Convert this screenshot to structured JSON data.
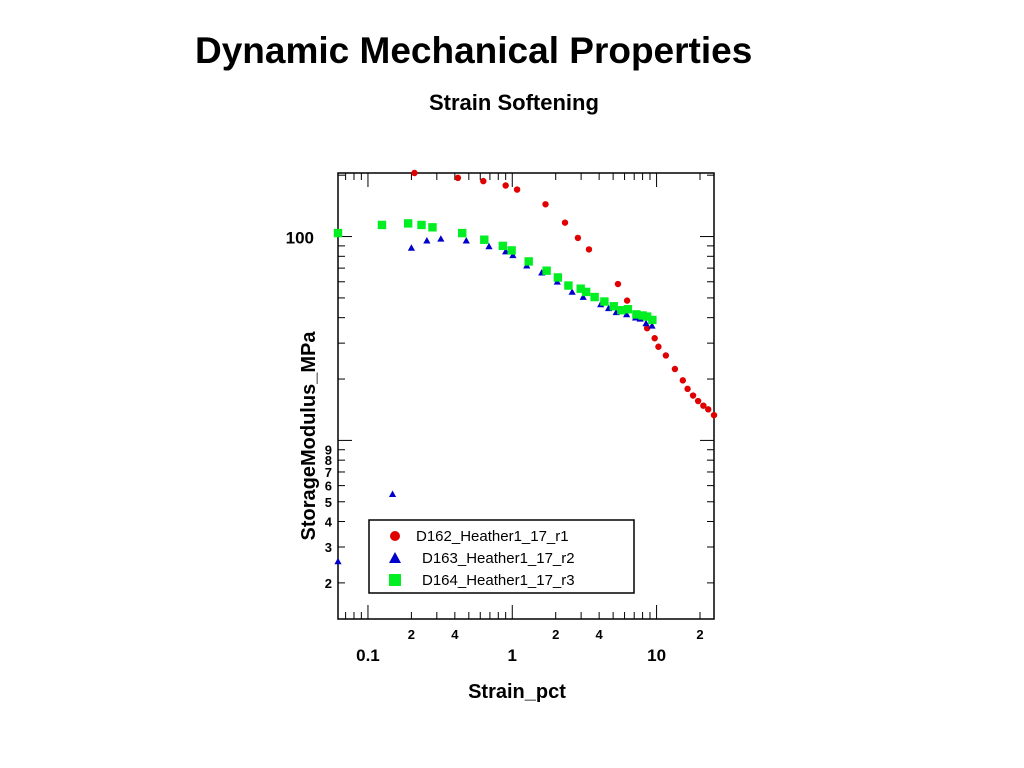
{
  "page": {
    "title": "Dynamic Mechanical Properties",
    "subtitle": "Strain Softening"
  },
  "chart_data": {
    "type": "scatter",
    "title": "Strain Softening",
    "xlabel": "Strain_pct",
    "ylabel": "StorageModulus_MPa",
    "xscale": "log",
    "yscale": "log",
    "xlim": [
      0.062,
      25
    ],
    "ylim": [
      1.33,
      205
    ],
    "x_major_ticks": [
      {
        "value": 0.1,
        "label": "0.1"
      },
      {
        "value": 1,
        "label": "1"
      },
      {
        "value": 10,
        "label": "10"
      }
    ],
    "x_minor_labels": [
      {
        "value": 0.2,
        "label": "2"
      },
      {
        "value": 0.4,
        "label": "4"
      },
      {
        "value": 2,
        "label": "2"
      },
      {
        "value": 4,
        "label": "4"
      },
      {
        "value": 20,
        "label": "2"
      }
    ],
    "y_major_ticks": [
      {
        "value": 100,
        "label": "100"
      }
    ],
    "y_minor_labels": [
      {
        "value": 2,
        "label": "2"
      },
      {
        "value": 3,
        "label": "3"
      },
      {
        "value": 4,
        "label": "4"
      },
      {
        "value": 5,
        "label": "5"
      },
      {
        "value": 6,
        "label": "6"
      },
      {
        "value": 7,
        "label": "7"
      },
      {
        "value": 8,
        "label": "8"
      },
      {
        "value": 9,
        "label": "9"
      }
    ],
    "legend_position": "bottom-center",
    "series": [
      {
        "name": "D162_Heather1_17_r1",
        "color": "#e00000",
        "marker": "circle",
        "points": [
          [
            0.21,
            205
          ],
          [
            0.42,
            194
          ],
          [
            0.63,
            187
          ],
          [
            0.9,
            178
          ],
          [
            1.08,
            170
          ],
          [
            1.7,
            144
          ],
          [
            2.32,
            117
          ],
          [
            2.85,
            98.5
          ],
          [
            3.4,
            86.5
          ],
          [
            5.4,
            58.5
          ],
          [
            6.25,
            48.5
          ],
          [
            8.6,
            35.5
          ],
          [
            9.7,
            31.7
          ],
          [
            10.3,
            28.8
          ],
          [
            11.6,
            26.1
          ],
          [
            13.4,
            22.4
          ],
          [
            15.2,
            19.7
          ],
          [
            16.4,
            17.9
          ],
          [
            17.9,
            16.6
          ],
          [
            19.4,
            15.6
          ],
          [
            21.1,
            14.8
          ],
          [
            22.8,
            14.2
          ],
          [
            25,
            13.3
          ]
        ]
      },
      {
        "name": "D163_Heather1_17_r2",
        "color": "#0000cc",
        "marker": "triangle",
        "points": [
          [
            0.062,
            2.55
          ],
          [
            0.148,
            5.45
          ],
          [
            0.2,
            88
          ],
          [
            0.256,
            95.5
          ],
          [
            0.32,
            97.5
          ],
          [
            0.48,
            95.5
          ],
          [
            0.69,
            89.5
          ],
          [
            0.9,
            84.5
          ],
          [
            1.01,
            81
          ],
          [
            1.26,
            72
          ],
          [
            1.6,
            66.5
          ],
          [
            2.05,
            60
          ],
          [
            2.6,
            53.5
          ],
          [
            3.1,
            50.5
          ],
          [
            4.1,
            46.5
          ],
          [
            4.65,
            44.5
          ],
          [
            5.25,
            42.5
          ],
          [
            6.2,
            41.5
          ],
          [
            7.15,
            40
          ],
          [
            7.7,
            39.5
          ],
          [
            8.45,
            37.5
          ],
          [
            9.3,
            36.5
          ]
        ]
      },
      {
        "name": "D164_Heather1_17_r3",
        "color": "#00ee22",
        "marker": "square",
        "points": [
          [
            0.062,
            104
          ],
          [
            0.125,
            114
          ],
          [
            0.19,
            116
          ],
          [
            0.235,
            114
          ],
          [
            0.28,
            111
          ],
          [
            0.45,
            104
          ],
          [
            0.64,
            96.5
          ],
          [
            0.86,
            90
          ],
          [
            0.99,
            85.5
          ],
          [
            1.3,
            75.5
          ],
          [
            1.73,
            68
          ],
          [
            2.07,
            63
          ],
          [
            2.45,
            57.5
          ],
          [
            2.98,
            55.5
          ],
          [
            3.25,
            53.5
          ],
          [
            3.72,
            50.5
          ],
          [
            4.35,
            48
          ],
          [
            5.05,
            45.5
          ],
          [
            5.7,
            43.5
          ],
          [
            6.33,
            44
          ],
          [
            7.25,
            41.5
          ],
          [
            8.0,
            41
          ],
          [
            8.6,
            40.5
          ],
          [
            9.35,
            39
          ]
        ]
      }
    ]
  }
}
